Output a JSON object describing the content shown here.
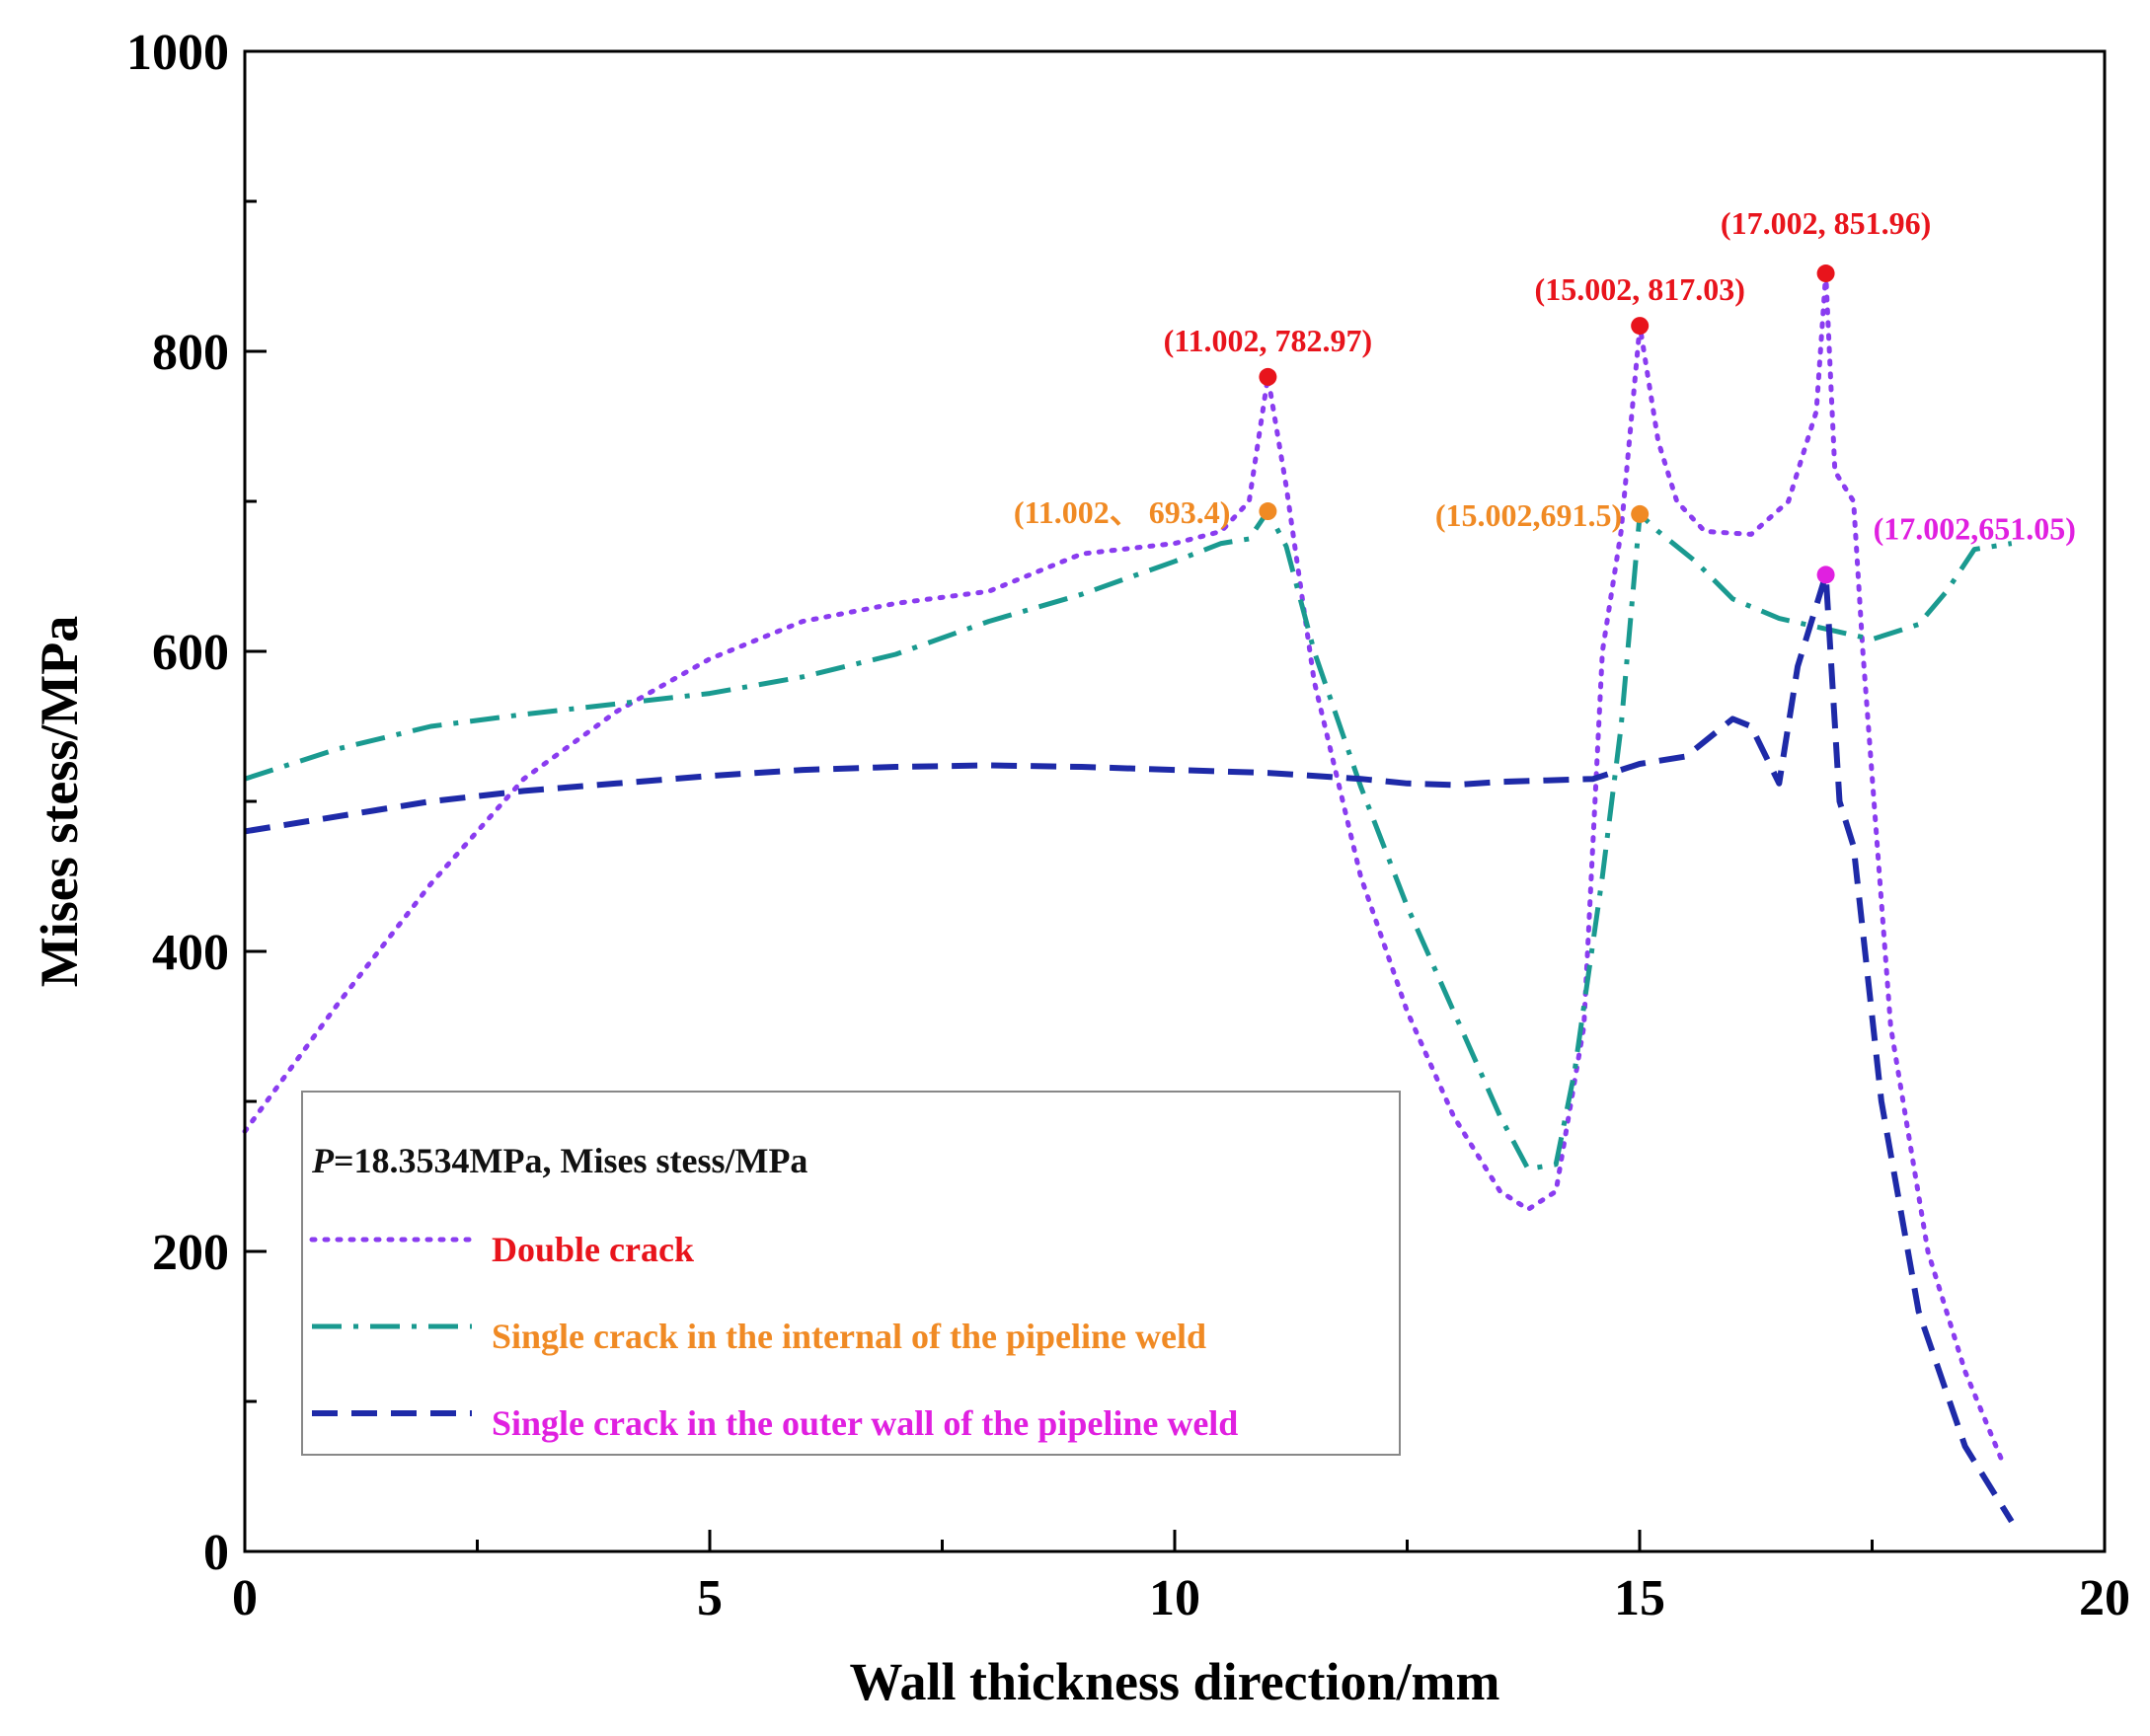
{
  "chart_data": {
    "type": "line",
    "xlabel": "Wall thickness direction/mm",
    "ylabel": "Mises stess/MPa",
    "xlim": [
      0,
      20
    ],
    "ylim": [
      0,
      1000
    ],
    "x_ticks": [
      0,
      5,
      10,
      15,
      20
    ],
    "x_minor_ticks": [
      2.5,
      7.5,
      12.5,
      17.5
    ],
    "y_ticks": [
      0,
      200,
      400,
      600,
      800,
      1000
    ],
    "y_minor_ticks": [
      100,
      300,
      500,
      700,
      900
    ],
    "grid": false,
    "legend": {
      "position": "lower-left",
      "header_italic": "P",
      "header_rest": "=18.3534MPa, Mises stess/MPa"
    },
    "series": [
      {
        "name": "Double crack",
        "color": "#8a3cf0",
        "label_color": "#e8141c",
        "dash": "dotted",
        "points": [
          [
            0,
            280
          ],
          [
            1,
            365
          ],
          [
            2,
            445
          ],
          [
            3,
            515
          ],
          [
            4,
            560
          ],
          [
            5,
            595
          ],
          [
            6,
            620
          ],
          [
            7,
            632
          ],
          [
            8,
            640
          ],
          [
            9,
            665
          ],
          [
            10,
            672
          ],
          [
            10.5,
            680
          ],
          [
            10.8,
            700
          ],
          [
            11.002,
            782.97
          ],
          [
            11.2,
            710
          ],
          [
            11.5,
            580
          ],
          [
            12,
            450
          ],
          [
            12.5,
            360
          ],
          [
            13,
            290
          ],
          [
            13.5,
            240
          ],
          [
            13.8,
            228
          ],
          [
            14.1,
            240
          ],
          [
            14.4,
            350
          ],
          [
            14.6,
            600
          ],
          [
            14.8,
            680
          ],
          [
            15.002,
            817.03
          ],
          [
            15.2,
            740
          ],
          [
            15.4,
            700
          ],
          [
            15.7,
            680
          ],
          [
            16.2,
            678
          ],
          [
            16.6,
            700
          ],
          [
            16.9,
            760
          ],
          [
            17.002,
            851.96
          ],
          [
            17.1,
            720
          ],
          [
            17.3,
            700
          ],
          [
            17.4,
            600
          ],
          [
            17.7,
            350
          ],
          [
            18.1,
            200
          ],
          [
            18.5,
            120
          ],
          [
            18.9,
            60
          ]
        ]
      },
      {
        "name": "Single crack in the internal of the pipeline weld",
        "color": "#1a9a90",
        "label_color": "#f08a24",
        "dash": "dashdot",
        "points": [
          [
            0,
            515
          ],
          [
            1,
            535
          ],
          [
            2,
            550
          ],
          [
            3,
            558
          ],
          [
            4,
            565
          ],
          [
            5,
            572
          ],
          [
            6,
            583
          ],
          [
            7,
            598
          ],
          [
            8,
            620
          ],
          [
            9,
            638
          ],
          [
            10,
            660
          ],
          [
            10.5,
            672
          ],
          [
            10.8,
            675
          ],
          [
            11.002,
            693.4
          ],
          [
            11.2,
            670
          ],
          [
            11.5,
            600
          ],
          [
            12,
            510
          ],
          [
            12.5,
            430
          ],
          [
            13,
            360
          ],
          [
            13.5,
            290
          ],
          [
            13.8,
            255
          ],
          [
            14.1,
            258
          ],
          [
            14.3,
            320
          ],
          [
            14.6,
            450
          ],
          [
            14.8,
            550
          ],
          [
            15.002,
            691.5
          ],
          [
            15.2,
            680
          ],
          [
            15.6,
            660
          ],
          [
            16,
            635
          ],
          [
            16.5,
            622
          ],
          [
            17,
            615
          ],
          [
            17.5,
            608
          ],
          [
            18,
            618
          ],
          [
            18.3,
            640
          ],
          [
            18.6,
            668
          ],
          [
            19,
            672
          ]
        ]
      },
      {
        "name": "Single crack in the outer wall of the pipeline weld",
        "color": "#1e2aa8",
        "label_color": "#e020e0",
        "dash": "dashed",
        "points": [
          [
            0,
            480
          ],
          [
            1,
            490
          ],
          [
            2,
            500
          ],
          [
            3,
            507
          ],
          [
            4,
            512
          ],
          [
            5,
            517
          ],
          [
            6,
            521
          ],
          [
            7,
            523
          ],
          [
            8,
            524
          ],
          [
            9,
            523
          ],
          [
            10,
            521
          ],
          [
            11,
            519
          ],
          [
            12,
            515
          ],
          [
            12.5,
            512
          ],
          [
            13,
            511
          ],
          [
            13.5,
            513
          ],
          [
            14,
            514
          ],
          [
            14.5,
            515
          ],
          [
            15,
            525
          ],
          [
            15.5,
            530
          ],
          [
            16,
            555
          ],
          [
            16.2,
            550
          ],
          [
            16.5,
            512
          ],
          [
            16.7,
            590
          ],
          [
            17.002,
            651.05
          ],
          [
            17.15,
            500
          ],
          [
            17.3,
            470
          ],
          [
            17.6,
            300
          ],
          [
            18,
            160
          ],
          [
            18.5,
            70
          ],
          [
            19,
            20
          ]
        ]
      }
    ],
    "annotations": [
      {
        "text": "(11.002, 782.97)",
        "x": 11.002,
        "y": 782.97,
        "color": "#e8141c"
      },
      {
        "text": "(15.002, 817.03)",
        "x": 15.002,
        "y": 817.03,
        "color": "#e8141c"
      },
      {
        "text": "(17.002, 851.96)",
        "x": 17.002,
        "y": 851.96,
        "color": "#e8141c"
      },
      {
        "text": "(11.002、 693.4)",
        "x": 11.002,
        "y": 693.4,
        "color": "#f08a24"
      },
      {
        "text": "(15.002,691.5)",
        "x": 15.002,
        "y": 691.5,
        "color": "#f08a24"
      },
      {
        "text": "(17.002,651.05)",
        "x": 17.002,
        "y": 651.05,
        "color": "#e020e0"
      }
    ]
  }
}
